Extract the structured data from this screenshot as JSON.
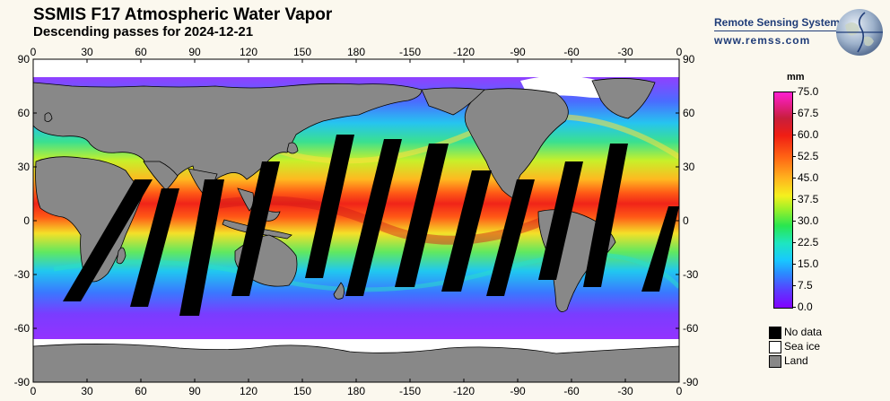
{
  "header": {
    "title": "SSMIS F17 Atmospheric Water Vapor",
    "subtitle": "Descending passes for 2024-12-21"
  },
  "brand": {
    "name": "Remote Sensing Systems",
    "url": "www.remss.com"
  },
  "map": {
    "lon_ticks": [
      "0",
      "30",
      "60",
      "90",
      "120",
      "150",
      "180",
      "-150",
      "-120",
      "-90",
      "-60",
      "-30",
      "0"
    ],
    "lat_ticks": [
      "90",
      "60",
      "30",
      "0",
      "-30",
      "-60",
      "-90"
    ],
    "colors": {
      "land": "#888888",
      "no_data": "#000000",
      "sea_ice": "#ffffff"
    }
  },
  "colorbar": {
    "units": "mm",
    "labels": [
      "75.0",
      "67.5",
      "60.0",
      "52.5",
      "45.0",
      "37.5",
      "30.0",
      "22.5",
      "15.0",
      "7.5",
      "0.0"
    ]
  },
  "legend": {
    "items": [
      {
        "label": "No data",
        "color": "#000000"
      },
      {
        "label": "Sea ice",
        "color": "#ffffff"
      },
      {
        "label": "Land",
        "color": "#888888"
      }
    ]
  }
}
